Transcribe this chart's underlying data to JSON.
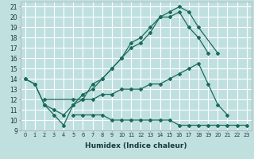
{
  "xlabel": "Humidex (Indice chaleur)",
  "xlim": [
    -0.5,
    23.5
  ],
  "ylim": [
    9,
    21.5
  ],
  "bg_color": "#c0e0e0",
  "grid_color": "#ffffff",
  "line_color": "#1a6b5a",
  "yticks": [
    9,
    10,
    11,
    12,
    13,
    14,
    15,
    16,
    17,
    18,
    19,
    20,
    21
  ],
  "xticks": [
    0,
    1,
    2,
    3,
    4,
    5,
    6,
    7,
    8,
    9,
    10,
    11,
    12,
    13,
    14,
    15,
    16,
    17,
    18,
    19,
    20,
    21,
    22,
    23
  ],
  "line1_x": [
    0,
    1,
    2,
    3,
    4,
    5,
    6,
    7,
    8,
    9,
    10,
    11,
    12,
    13,
    14,
    15,
    16,
    17,
    18,
    20
  ],
  "line1_y": [
    14,
    13.5,
    11.5,
    11.0,
    10.5,
    11.5,
    12.5,
    13.0,
    14.0,
    15.0,
    16.0,
    17.0,
    17.5,
    18.5,
    20.0,
    20.5,
    21.0,
    20.5,
    19.0,
    16.5
  ],
  "line2_x": [
    0,
    1,
    2,
    3,
    4,
    5,
    6,
    7,
    8,
    9,
    10,
    11,
    12,
    13,
    14,
    15,
    16,
    17,
    18,
    19
  ],
  "line2_y": [
    14,
    13.5,
    11.5,
    10.5,
    9.5,
    11.5,
    12.0,
    13.5,
    14.0,
    15.0,
    16.0,
    17.5,
    18.0,
    19.0,
    20.0,
    20.0,
    20.5,
    19.0,
    18.0,
    16.5
  ],
  "line3_x": [
    2,
    5,
    6,
    7,
    8,
    9,
    10,
    11,
    12,
    13,
    14,
    15,
    16,
    17,
    18,
    19,
    20,
    21
  ],
  "line3_y": [
    12.0,
    12.0,
    12.0,
    12.0,
    12.5,
    12.5,
    13.0,
    13.0,
    13.0,
    13.5,
    13.5,
    14.0,
    14.5,
    15.0,
    15.5,
    13.5,
    11.5,
    10.5
  ],
  "line4_x": [
    5,
    6,
    7,
    8,
    9,
    10,
    11,
    12,
    13,
    14,
    15,
    16,
    17,
    18,
    19,
    20,
    21,
    22,
    23
  ],
  "line4_y": [
    10.5,
    10.5,
    10.5,
    10.5,
    10.0,
    10.0,
    10.0,
    10.0,
    10.0,
    10.0,
    10.0,
    9.5,
    9.5,
    9.5,
    9.5,
    9.5,
    9.5,
    9.5,
    9.5
  ]
}
